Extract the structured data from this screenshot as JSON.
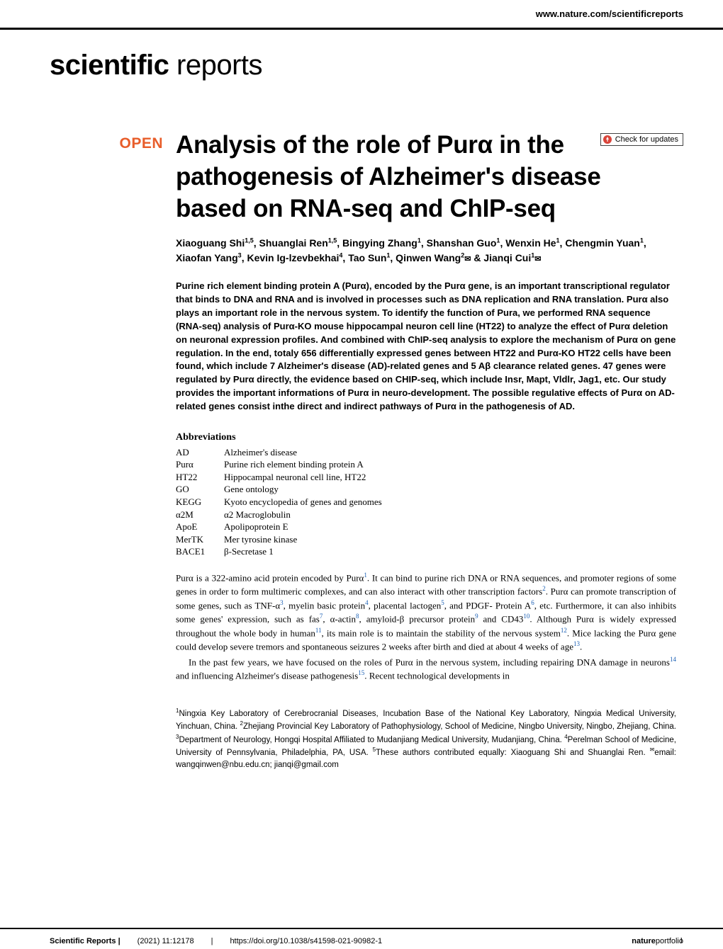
{
  "header": {
    "site": "www.nature.com/scientificreports"
  },
  "logo": {
    "bold": "scientific",
    "light": " reports"
  },
  "updates": {
    "label": "Check for updates"
  },
  "open_badge": "OPEN",
  "title": "Analysis of the role of Purα in the pathogenesis of Alzheimer's disease based on RNA-seq and ChIP-seq",
  "authors_html": "Xiaoguang Shi<sup>1,5</sup>, Shuanglai Ren<sup>1,5</sup>, Bingying Zhang<sup>1</sup>, Shanshan Guo<sup>1</sup>, Wenxin He<sup>1</sup>, Chengmin Yuan<sup>1</sup>, Xiaofan Yang<sup>3</sup>, Kevin Ig-lzevbekhai<sup>4</sup>, Tao Sun<sup>1</sup>, Qinwen Wang<sup>2</sup><span class='envelope'>✉</span> & Jianqi Cui<sup>1</sup><span class='envelope'>✉</span>",
  "abstract": "Purine rich element binding protein A (Purα), encoded by the Purα gene, is an important transcriptional regulator that binds to DNA and RNA and is involved in processes such as DNA replication and RNA translation. Purα also plays an important role in the nervous system. To identify the function of Pura, we performed RNA sequence (RNA-seq) analysis of Purα-KO mouse hippocampal neuron cell line (HT22) to analyze the effect of Purα deletion on neuronal expression profiles. And combined with ChIP-seq analysis to explore the mechanism of Purα on gene regulation. In the end, totaly 656 differentially expressed genes between HT22 and Purα-KO HT22 cells have been found, which include 7 Alzheimer's disease (AD)-related genes and 5 Aβ clearance related genes. 47 genes were regulated by Purα directly, the evidence based on CHIP-seq, which include Insr, Mapt, Vldlr, Jag1, etc. Our study provides the important informations of Purα in neuro-development. The possible regulative effects of Purα on AD-related genes consist inthe direct and indirect pathways of Purα in the pathogenesis of AD.",
  "abbrev_heading": "Abbreviations",
  "abbreviations": [
    {
      "k": "AD",
      "v": "Alzheimer's disease"
    },
    {
      "k": "Purα",
      "v": "Purine rich element binding protein A"
    },
    {
      "k": "HT22",
      "v": "Hippocampal neuronal cell line, HT22"
    },
    {
      "k": "GO",
      "v": "Gene ontology"
    },
    {
      "k": "KEGG",
      "v": "Kyoto encyclopedia of genes and genomes"
    },
    {
      "k": "α2M",
      "v": "α2 Macroglobulin"
    },
    {
      "k": "ApoE",
      "v": "Apolipoprotein E"
    },
    {
      "k": "MerTK",
      "v": "Mer tyrosine kinase"
    },
    {
      "k": "BACE1",
      "v": "β-Secretase 1"
    }
  ],
  "body": {
    "p1": "Purα is a 322-amino acid protein encoded by Purα<span class='cite'>1</span>. It can bind to purine rich DNA or RNA sequences, and promoter regions of some genes in order to form multimeric complexes, and can also interact with other transcription factors<span class='cite'>2</span>. Purα can promote transcription of some genes, such as TNF-α<span class='cite'>3</span>, myelin basic protein<span class='cite'>4</span>, placental lactogen<span class='cite'>5</span>, and PDGF- Protein A<span class='cite'>6</span>, etc. Furthermore, it can also inhibits some genes' expression, such as fas<span class='cite'>7</span>, α-actin<span class='cite'>8</span>, amyloid-β precursor protein<span class='cite'>9</span> and CD43<span class='cite'>10</span>. Although Purα is widely expressed throughout the whole body in human<span class='cite'>11</span>, its main role is to maintain the stability of the nervous system<span class='cite'>12</span>. Mice lacking the Purα gene could develop severe tremors and spontaneous seizures 2 weeks after birth and died at about 4 weeks of age<span class='cite'>13</span>.",
    "p2": "In the past few years, we have focused on the roles of Purα in the nervous system, including repairing DNA damage in neurons<span class='cite'>14</span> and influencing Alzheimer's disease pathogenesis<span class='cite'>15</span>. Recent technological developments in"
  },
  "affiliations": "<sup>1</sup>Ningxia Key Laboratory of Cerebrocranial Diseases, Incubation Base of the National Key Laboratory, Ningxia Medical University, Yinchuan, China. <sup>2</sup>Zhejiang Provincial Key Laboratory of Pathophysiology, School of Medicine, Ningbo University, Ningbo, Zhejiang, China. <sup>3</sup>Department of Neurology, Hongqi Hospital Affiliated to Mudanjiang Medical University, Mudanjiang, China. <sup>4</sup>Perelman School of Medicine, University of Pennsylvania, Philadelphia, PA, USA. <sup>5</sup>These authors contributed equally: Xiaoguang Shi and Shuanglai Ren. <sup>✉</sup>email: wangqinwen@nbu.edu.cn; jianqi@gmail.com",
  "footer": {
    "journal": "Scientific Reports |",
    "citation": "(2021) 11:12178",
    "sep": "|",
    "doi": "https://doi.org/10.1038/s41598-021-90982-1",
    "publisher_bold": "nature",
    "publisher_light": "portfolio",
    "page": "1"
  },
  "colors": {
    "open": "#e85d2a",
    "cite": "#1a5fb4",
    "text": "#000000",
    "bg": "#ffffff"
  }
}
